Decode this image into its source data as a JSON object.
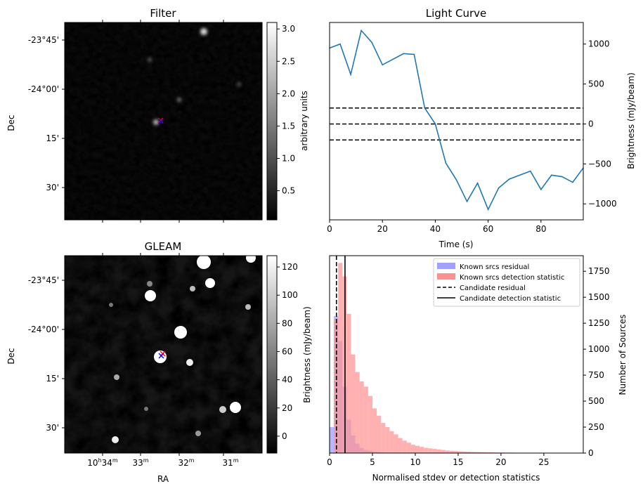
{
  "colors": {
    "line": "#1f77b4",
    "known_residual": "#a0a0ff",
    "known_detection": "#ff9090",
    "marker_red": "#ff0000",
    "marker_blue": "#0000ff"
  },
  "filter_panel": {
    "title": "Filter",
    "ylabel": "Dec",
    "dec_ticks": [
      "-23°45'",
      "-24°00'",
      "15'",
      "30'"
    ],
    "colorbar_label": "arbitrary units",
    "colorbar_ticks": [
      "0.5",
      "1.0",
      "1.5",
      "2.0",
      "2.5",
      "3.0"
    ],
    "colorbar_range": [
      0.05,
      3.1
    ]
  },
  "gleam_panel": {
    "title": "GLEAM",
    "xlabel": "RA",
    "ylabel": "Dec",
    "dec_ticks": [
      "-23°45'",
      "-24°00'",
      "15'",
      "30'"
    ],
    "ra_ticks": [
      {
        "h": "10",
        "m": "34",
        "full": true
      },
      {
        "m": "33"
      },
      {
        "m": "32"
      },
      {
        "m": "31"
      }
    ],
    "colorbar_label": "Brightness (mJy/beam)",
    "colorbar_ticks": [
      "0",
      "20",
      "40",
      "60",
      "80",
      "100",
      "120"
    ],
    "colorbar_range": [
      -12,
      128
    ]
  },
  "chart_data": [
    {
      "type": "line",
      "title": "Light Curve",
      "xlabel": "Time (s)",
      "ylabel": "Brightness (mJy/beam)",
      "xlim": [
        0,
        96
      ],
      "ylim": [
        -1200,
        1270
      ],
      "xticks": [
        0,
        20,
        40,
        60,
        80
      ],
      "yticks": [
        -1000,
        -500,
        0,
        500,
        1000
      ],
      "series": [
        {
          "name": "light curve",
          "x": [
            0,
            4,
            8,
            12,
            16,
            20,
            24,
            28,
            32,
            36,
            40,
            44,
            48,
            52,
            56,
            60,
            64,
            68,
            72,
            76,
            80,
            84,
            88,
            92,
            96
          ],
          "y": [
            950,
            1000,
            620,
            1170,
            1020,
            740,
            810,
            880,
            870,
            200,
            0,
            -490,
            -700,
            -970,
            -740,
            -1070,
            -800,
            -690,
            -640,
            -590,
            -820,
            -640,
            -660,
            -730,
            -550
          ]
        }
      ],
      "hlines": [
        200,
        0,
        -200
      ]
    },
    {
      "type": "bar",
      "title": "",
      "xlabel": "Normalised stdev or detection statistics",
      "ylabel": "Number of Sources",
      "xlim": [
        0,
        29.6
      ],
      "ylim": [
        0,
        1900
      ],
      "xticks": [
        0,
        5,
        10,
        15,
        20,
        25
      ],
      "yticks": [
        0,
        250,
        500,
        750,
        1000,
        1250,
        1500,
        1750
      ],
      "legend": [
        "Known srcs residual",
        "Known srcs detection statistic",
        "Candidate residual",
        "Candidate detection statistic"
      ],
      "bin_width": 0.5,
      "series": [
        {
          "name": "Known srcs residual",
          "bin_start": 0,
          "values": [
            250,
            1320,
            1080,
            640,
            320,
            170,
            90,
            50,
            30,
            20,
            12,
            8,
            5,
            3,
            2
          ]
        },
        {
          "name": "Known srcs detection statistic",
          "bin_start": 0.5,
          "values": [
            1290,
            1830,
            1700,
            1340,
            950,
            780,
            690,
            640,
            550,
            430,
            360,
            290,
            250,
            210,
            180,
            145,
            120,
            100,
            80,
            70,
            60,
            50,
            45,
            40,
            35,
            30,
            25,
            22,
            20,
            17,
            15,
            13,
            11,
            10,
            9,
            8,
            7,
            6,
            5,
            5,
            4,
            4,
            3,
            3,
            3,
            2,
            2,
            2,
            2,
            2,
            1,
            1,
            1,
            1,
            1,
            1,
            1,
            1,
            1,
            1,
            1,
            1,
            1,
            1,
            1,
            1,
            1,
            1,
            1,
            1,
            1,
            1,
            1,
            1,
            1
          ]
        }
      ],
      "vlines": [
        {
          "name": "Candidate residual",
          "x": 0.8,
          "style": "dashed"
        },
        {
          "name": "Candidate detection statistic",
          "x": 1.8,
          "style": "solid"
        }
      ]
    }
  ]
}
